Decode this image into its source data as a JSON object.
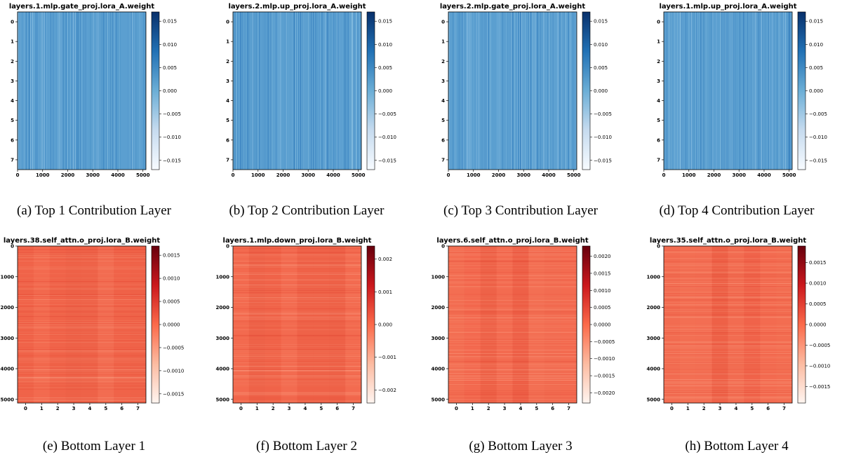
{
  "colors": {
    "blue_cmap": "Blues",
    "red_cmap": "Reds"
  },
  "chart_data": [
    {
      "type": "heatmap",
      "cmap": "Blues",
      "title": "layers.1.mlp.gate_proj.lora_A.weight",
      "caption": "(a) Top 1 Contribution Layer",
      "rows": 8,
      "cols": 5120,
      "ylim": [
        0,
        7
      ],
      "xlim": [
        0,
        5120
      ],
      "x_ticks": [
        "0",
        "1000",
        "2000",
        "3000",
        "4000",
        "5000"
      ],
      "x_tick_values": [
        0,
        1000,
        2000,
        3000,
        4000,
        5000
      ],
      "y_ticks": [
        "0",
        "1",
        "2",
        "3",
        "4",
        "5",
        "6",
        "7"
      ],
      "y_tick_values": [
        0,
        1,
        2,
        3,
        4,
        5,
        6,
        7
      ],
      "colorbar": {
        "min": -0.017,
        "max": 0.017,
        "ticks": [
          "0.015",
          "0.010",
          "0.005",
          "0.000",
          "−0.005",
          "−0.010",
          "−0.015"
        ],
        "tick_values": [
          0.015,
          0.01,
          0.005,
          0.0,
          -0.005,
          -0.01,
          -0.015
        ]
      }
    },
    {
      "type": "heatmap",
      "cmap": "Blues",
      "title": "layers.2.mlp.up_proj.lora_A.weight",
      "caption": "(b) Top 2 Contribution Layer",
      "rows": 8,
      "cols": 5120,
      "ylim": [
        0,
        7
      ],
      "xlim": [
        0,
        5120
      ],
      "x_ticks": [
        "0",
        "1000",
        "2000",
        "3000",
        "4000",
        "5000"
      ],
      "x_tick_values": [
        0,
        1000,
        2000,
        3000,
        4000,
        5000
      ],
      "y_ticks": [
        "0",
        "1",
        "2",
        "3",
        "4",
        "5",
        "6",
        "7"
      ],
      "y_tick_values": [
        0,
        1,
        2,
        3,
        4,
        5,
        6,
        7
      ],
      "colorbar": {
        "min": -0.017,
        "max": 0.017,
        "ticks": [
          "0.015",
          "0.010",
          "0.005",
          "0.000",
          "−0.005",
          "−0.010",
          "−0.015"
        ],
        "tick_values": [
          0.015,
          0.01,
          0.005,
          0.0,
          -0.005,
          -0.01,
          -0.015
        ]
      }
    },
    {
      "type": "heatmap",
      "cmap": "Blues",
      "title": "layers.2.mlp.gate_proj.lora_A.weight",
      "caption": "(c) Top 3 Contribution Layer",
      "rows": 8,
      "cols": 5120,
      "ylim": [
        0,
        7
      ],
      "xlim": [
        0,
        5120
      ],
      "x_ticks": [
        "0",
        "1000",
        "2000",
        "3000",
        "4000",
        "5000"
      ],
      "x_tick_values": [
        0,
        1000,
        2000,
        3000,
        4000,
        5000
      ],
      "y_ticks": [
        "0",
        "1",
        "2",
        "3",
        "4",
        "5",
        "6",
        "7"
      ],
      "y_tick_values": [
        0,
        1,
        2,
        3,
        4,
        5,
        6,
        7
      ],
      "colorbar": {
        "min": -0.017,
        "max": 0.017,
        "ticks": [
          "0.015",
          "0.010",
          "0.005",
          "0.000",
          "−0.005",
          "−0.010",
          "−0.015"
        ],
        "tick_values": [
          0.015,
          0.01,
          0.005,
          0.0,
          -0.005,
          -0.01,
          -0.015
        ]
      }
    },
    {
      "type": "heatmap",
      "cmap": "Blues",
      "title": "layers.1.mlp.up_proj.lora_A.weight",
      "caption": "(d) Top 4 Contribution Layer",
      "rows": 8,
      "cols": 5120,
      "ylim": [
        0,
        7
      ],
      "xlim": [
        0,
        5120
      ],
      "x_ticks": [
        "0",
        "1000",
        "2000",
        "3000",
        "4000",
        "5000"
      ],
      "x_tick_values": [
        0,
        1000,
        2000,
        3000,
        4000,
        5000
      ],
      "y_ticks": [
        "0",
        "1",
        "2",
        "3",
        "4",
        "5",
        "6",
        "7"
      ],
      "y_tick_values": [
        0,
        1,
        2,
        3,
        4,
        5,
        6,
        7
      ],
      "colorbar": {
        "min": -0.017,
        "max": 0.017,
        "ticks": [
          "0.015",
          "0.010",
          "0.005",
          "0.000",
          "−0.005",
          "−0.010",
          "−0.015"
        ],
        "tick_values": [
          0.015,
          0.01,
          0.005,
          0.0,
          -0.005,
          -0.01,
          -0.015
        ]
      }
    },
    {
      "type": "heatmap",
      "cmap": "Reds",
      "title": "layers.38.self_attn.o_proj.lora_B.weight",
      "caption": "(e) Bottom Layer 1",
      "rows": 5120,
      "cols": 8,
      "ylim": [
        0,
        5120
      ],
      "xlim": [
        0,
        7
      ],
      "x_ticks": [
        "0",
        "1",
        "2",
        "3",
        "4",
        "5",
        "6",
        "7"
      ],
      "x_tick_values": [
        0,
        1,
        2,
        3,
        4,
        5,
        6,
        7
      ],
      "y_ticks": [
        "0",
        "1000",
        "2000",
        "3000",
        "4000",
        "5000"
      ],
      "y_tick_values": [
        0,
        1000,
        2000,
        3000,
        4000,
        5000
      ],
      "colorbar": {
        "min": -0.0017,
        "max": 0.0017,
        "ticks": [
          "0.0015",
          "0.0010",
          "0.0005",
          "0.0000",
          "−0.0005",
          "−0.0010",
          "−0.0015"
        ],
        "tick_values": [
          0.0015,
          0.001,
          0.0005,
          0.0,
          -0.0005,
          -0.001,
          -0.0015
        ]
      }
    },
    {
      "type": "heatmap",
      "cmap": "Reds",
      "title": "layers.1.mlp.down_proj.lora_B.weight",
      "caption": "(f) Bottom Layer 2",
      "rows": 5120,
      "cols": 8,
      "ylim": [
        0,
        5120
      ],
      "xlim": [
        0,
        7
      ],
      "x_ticks": [
        "0",
        "1",
        "2",
        "3",
        "4",
        "5",
        "6",
        "7"
      ],
      "x_tick_values": [
        0,
        1,
        2,
        3,
        4,
        5,
        6,
        7
      ],
      "y_ticks": [
        "0",
        "1000",
        "2000",
        "3000",
        "4000",
        "5000"
      ],
      "y_tick_values": [
        0,
        1000,
        2000,
        3000,
        4000,
        5000
      ],
      "colorbar": {
        "min": -0.0024,
        "max": 0.0024,
        "ticks": [
          "0.002",
          "0.001",
          "0.000",
          "−0.001",
          "−0.002"
        ],
        "tick_values": [
          0.002,
          0.001,
          0.0,
          -0.001,
          -0.002
        ]
      }
    },
    {
      "type": "heatmap",
      "cmap": "Reds",
      "title": "layers.6.self_attn.o_proj.lora_B.weight",
      "caption": "(g) Bottom Layer 3",
      "rows": 5120,
      "cols": 8,
      "ylim": [
        0,
        5120
      ],
      "xlim": [
        0,
        7
      ],
      "x_ticks": [
        "0",
        "1",
        "2",
        "3",
        "4",
        "5",
        "6",
        "7"
      ],
      "x_tick_values": [
        0,
        1,
        2,
        3,
        4,
        5,
        6,
        7
      ],
      "y_ticks": [
        "0",
        "1000",
        "2000",
        "3000",
        "4000",
        "5000"
      ],
      "y_tick_values": [
        0,
        1000,
        2000,
        3000,
        4000,
        5000
      ],
      "colorbar": {
        "min": -0.0023,
        "max": 0.0023,
        "ticks": [
          "0.0020",
          "0.0015",
          "0.0010",
          "0.0005",
          "0.0000",
          "−0.0005",
          "−0.0010",
          "−0.0015",
          "−0.0020"
        ],
        "tick_values": [
          0.002,
          0.0015,
          0.001,
          0.0005,
          0.0,
          -0.0005,
          -0.001,
          -0.0015,
          -0.002
        ]
      }
    },
    {
      "type": "heatmap",
      "cmap": "Reds",
      "title": "layers.35.self_attn.o_proj.lora_B.weight",
      "caption": "(h) Bottom Layer 4",
      "rows": 5120,
      "cols": 8,
      "ylim": [
        0,
        5120
      ],
      "xlim": [
        0,
        7
      ],
      "x_ticks": [
        "0",
        "1",
        "2",
        "3",
        "4",
        "5",
        "6",
        "7"
      ],
      "x_tick_values": [
        0,
        1,
        2,
        3,
        4,
        5,
        6,
        7
      ],
      "y_ticks": [
        "0",
        "1000",
        "2000",
        "3000",
        "4000",
        "5000"
      ],
      "y_tick_values": [
        0,
        1000,
        2000,
        3000,
        4000,
        5000
      ],
      "colorbar": {
        "min": -0.0019,
        "max": 0.0019,
        "ticks": [
          "0.0015",
          "0.0010",
          "0.0005",
          "0.0000",
          "−0.0005",
          "−0.0010",
          "−0.0015"
        ],
        "tick_values": [
          0.0015,
          0.001,
          0.0005,
          0.0,
          -0.0005,
          -0.001,
          -0.0015
        ]
      }
    }
  ]
}
